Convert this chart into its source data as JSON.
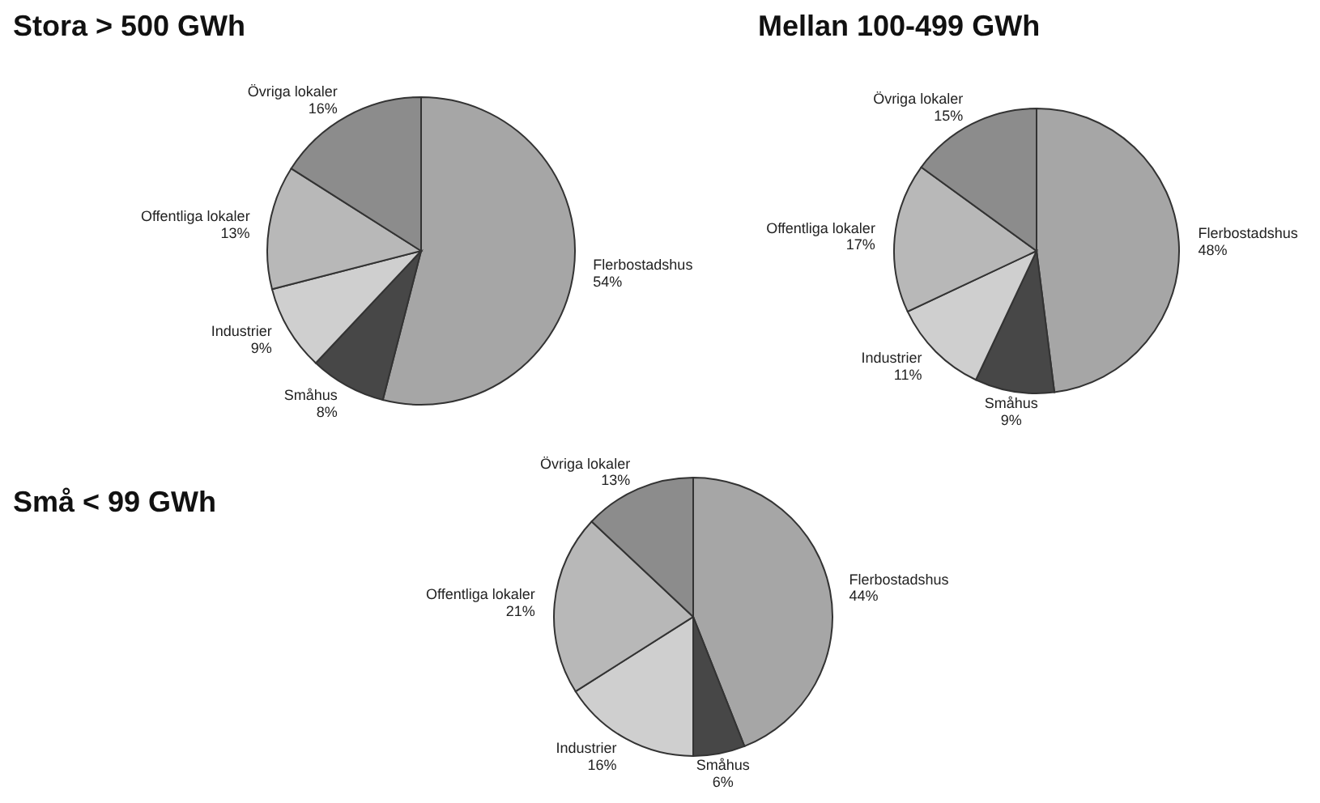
{
  "chart_data": [
    {
      "type": "pie",
      "title": "Stora > 500 GWh",
      "categories": [
        "Flerbostadshus",
        "Småhus",
        "Industrier",
        "Offentliga lokaler",
        "Övriga lokaler"
      ],
      "values": [
        54,
        8,
        9,
        13,
        16
      ],
      "value_labels": [
        "54%",
        "8%",
        "9%",
        "13%",
        "16%"
      ],
      "colors": [
        "#a6a6a6",
        "#474747",
        "#cfcfcf",
        "#b8b8b8",
        "#8c8c8c"
      ]
    },
    {
      "type": "pie",
      "title": "Mellan 100-499 GWh",
      "categories": [
        "Flerbostadshus",
        "Småhus",
        "Industrier",
        "Offentliga lokaler",
        "Övriga lokaler"
      ],
      "values": [
        48,
        9,
        11,
        17,
        15
      ],
      "value_labels": [
        "48%",
        "9%",
        "11%",
        "17%",
        "15%"
      ],
      "colors": [
        "#a6a6a6",
        "#474747",
        "#cfcfcf",
        "#b8b8b8",
        "#8c8c8c"
      ]
    },
    {
      "type": "pie",
      "title": "Små < 99 GWh",
      "categories": [
        "Flerbostadshus",
        "Småhus",
        "Industrier",
        "Offentliga lokaler",
        "Övriga lokaler"
      ],
      "values": [
        44,
        6,
        16,
        21,
        13
      ],
      "value_labels": [
        "44%",
        "6%",
        "16%",
        "21%",
        "13%"
      ],
      "colors": [
        "#a6a6a6",
        "#474747",
        "#cfcfcf",
        "#b8b8b8",
        "#8c8c8c"
      ]
    }
  ]
}
